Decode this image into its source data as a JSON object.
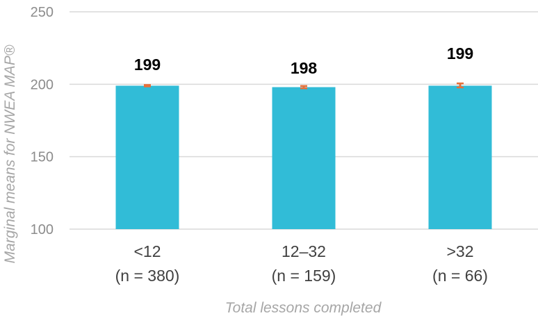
{
  "chart_data": {
    "type": "bar",
    "categories": [
      [
        "<12",
        "(n = 380)"
      ],
      [
        "12–32",
        "(n = 159)"
      ],
      [
        ">32",
        "(n = 66)"
      ]
    ],
    "values": [
      199,
      198,
      199
    ],
    "data_labels": [
      "199",
      "198",
      "199"
    ],
    "error_bars": [
      {
        "low": 198.5,
        "high": 199.5
      },
      {
        "low": 197.2,
        "high": 198.8
      },
      {
        "low": 197.8,
        "high": 200.6
      }
    ],
    "ylim": [
      100,
      250
    ],
    "yticks": [
      100,
      150,
      200,
      250
    ],
    "ytick_labels": [
      "100",
      "150",
      "200",
      "250"
    ],
    "xlabel": "Total lessons completed",
    "ylabel": "Marginal means for NWEA MAP®",
    "grid": true,
    "colors": {
      "bar": "#31bcd7",
      "error_bar": "#e8703a",
      "grid": "#d9d9d9"
    }
  }
}
